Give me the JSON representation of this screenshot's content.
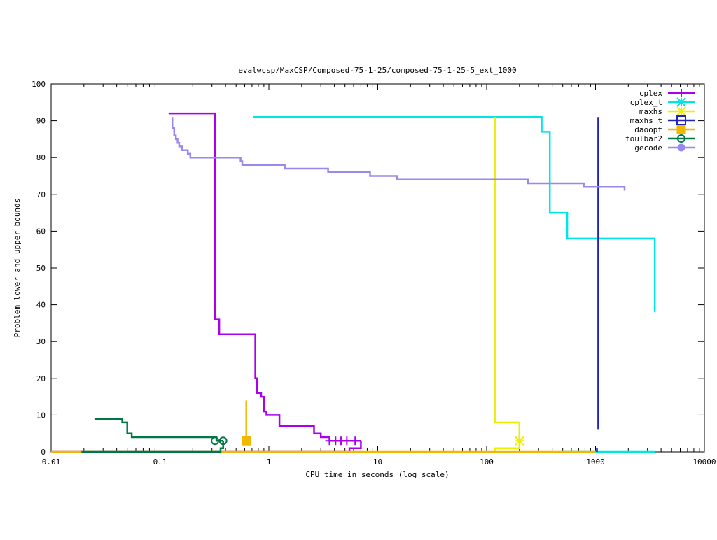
{
  "chart_data": {
    "type": "line",
    "title": "evalwcsp/MaxCSP/Composed-75-1-25/composed-75-1-25-5_ext_1000",
    "xlabel": "CPU time in seconds (log scale)",
    "ylabel": "Problem lower and upper bounds",
    "x_scale": "log",
    "xlim": [
      0.01,
      10000
    ],
    "ylim": [
      0,
      100
    ],
    "x_ticks": [
      0.01,
      0.1,
      1,
      10,
      100,
      1000,
      10000
    ],
    "x_tick_labels": [
      "0.01",
      "0.1",
      "1",
      "10",
      "100",
      "1000",
      "10000"
    ],
    "y_ticks": [
      0,
      10,
      20,
      30,
      40,
      50,
      60,
      70,
      80,
      90,
      100
    ],
    "y_tick_labels": [
      "0",
      "10",
      "20",
      "30",
      "40",
      "50",
      "60",
      "70",
      "80",
      "90",
      "100"
    ],
    "grid": false,
    "legend_position": "top-right",
    "series": [
      {
        "name": "cplex",
        "color": "#aa00ee",
        "marker": "plus",
        "upper": [
          [
            0.12,
            92
          ],
          [
            0.32,
            92
          ],
          [
            0.32,
            36
          ],
          [
            0.35,
            36
          ],
          [
            0.35,
            32
          ],
          [
            0.75,
            32
          ],
          [
            0.75,
            20
          ],
          [
            0.78,
            20
          ],
          [
            0.78,
            16
          ],
          [
            0.85,
            16
          ],
          [
            0.85,
            15
          ],
          [
            0.9,
            15
          ],
          [
            0.9,
            11
          ],
          [
            0.95,
            11
          ],
          [
            0.95,
            10
          ],
          [
            1.25,
            10
          ],
          [
            1.25,
            7
          ],
          [
            2.6,
            7
          ],
          [
            2.6,
            5
          ],
          [
            3.0,
            5
          ],
          [
            3.0,
            4
          ],
          [
            3.6,
            4
          ],
          [
            3.6,
            3
          ],
          [
            7.0,
            3
          ]
        ],
        "lower": [
          [
            0.01,
            0
          ],
          [
            5.5,
            0
          ],
          [
            5.5,
            1
          ],
          [
            7.0,
            1
          ],
          [
            7.0,
            3
          ]
        ],
        "markers": [
          [
            3.6,
            3
          ],
          [
            4.1,
            3
          ],
          [
            4.6,
            3
          ],
          [
            5.2,
            3
          ],
          [
            6.2,
            3
          ]
        ]
      },
      {
        "name": "cplex_t",
        "color": "#00e5e5",
        "marker": "star",
        "upper": [
          [
            0.72,
            91
          ],
          [
            320,
            91
          ],
          [
            320,
            87
          ],
          [
            380,
            87
          ],
          [
            380,
            65
          ],
          [
            550,
            65
          ],
          [
            550,
            58
          ],
          [
            3500,
            58
          ],
          [
            3500,
            38
          ]
        ],
        "lower": [
          [
            520,
            0
          ],
          [
            3500,
            0
          ]
        ],
        "markers": []
      },
      {
        "name": "maxhs",
        "color": "#eeee00",
        "marker": "star",
        "upper": [
          [
            120,
            91
          ],
          [
            120,
            8
          ],
          [
            200,
            8
          ],
          [
            200,
            3
          ]
        ],
        "lower": [
          [
            120,
            0
          ],
          [
            120,
            1
          ],
          [
            200,
            1
          ],
          [
            200,
            3
          ]
        ],
        "markers": [
          [
            200,
            3
          ]
        ]
      },
      {
        "name": "maxhs_t",
        "color": "#2222bb",
        "marker": "square",
        "upper": [
          [
            1060,
            91
          ],
          [
            1060,
            6
          ]
        ],
        "lower": [
          [
            1030,
            0
          ],
          [
            1030,
            1
          ]
        ],
        "markers": []
      },
      {
        "name": "daoopt",
        "color": "#f0b800",
        "marker": "filled-square",
        "upper": [
          [
            0.62,
            14
          ],
          [
            0.62,
            3
          ]
        ],
        "lower": [
          [
            0.01,
            0
          ],
          [
            1000,
            0
          ]
        ],
        "markers": [
          [
            0.62,
            3
          ]
        ]
      },
      {
        "name": "toulbar2",
        "color": "#007744",
        "marker": "circle",
        "upper": [
          [
            0.025,
            9
          ],
          [
            0.045,
            9
          ],
          [
            0.045,
            8
          ],
          [
            0.05,
            8
          ],
          [
            0.05,
            5
          ],
          [
            0.055,
            5
          ],
          [
            0.055,
            4
          ],
          [
            0.33,
            4
          ],
          [
            0.33,
            3
          ],
          [
            0.38,
            3
          ]
        ],
        "lower": [
          [
            0.019,
            0
          ],
          [
            0.36,
            0
          ],
          [
            0.36,
            1
          ],
          [
            0.38,
            1
          ],
          [
            0.38,
            3
          ]
        ],
        "markers": [
          [
            0.32,
            3
          ],
          [
            0.38,
            3
          ]
        ]
      },
      {
        "name": "gecode",
        "color": "#9a88ee",
        "marker": "filled-circle",
        "upper": [
          [
            0.13,
            91
          ],
          [
            0.13,
            88
          ],
          [
            0.135,
            88
          ],
          [
            0.135,
            86
          ],
          [
            0.14,
            86
          ],
          [
            0.14,
            85
          ],
          [
            0.145,
            85
          ],
          [
            0.145,
            84
          ],
          [
            0.15,
            84
          ],
          [
            0.15,
            83
          ],
          [
            0.16,
            83
          ],
          [
            0.16,
            82
          ],
          [
            0.18,
            82
          ],
          [
            0.18,
            81
          ],
          [
            0.19,
            81
          ],
          [
            0.19,
            80
          ],
          [
            0.55,
            80
          ],
          [
            0.55,
            79
          ],
          [
            0.57,
            79
          ],
          [
            0.57,
            78
          ],
          [
            1.4,
            78
          ],
          [
            1.4,
            77
          ],
          [
            3.5,
            77
          ],
          [
            3.5,
            76
          ],
          [
            8.5,
            76
          ],
          [
            8.5,
            75
          ],
          [
            15,
            75
          ],
          [
            15,
            74
          ],
          [
            240,
            74
          ],
          [
            240,
            73
          ],
          [
            780,
            73
          ],
          [
            780,
            72
          ],
          [
            1850,
            72
          ],
          [
            1850,
            71
          ]
        ],
        "lower": [],
        "markers": []
      }
    ]
  }
}
